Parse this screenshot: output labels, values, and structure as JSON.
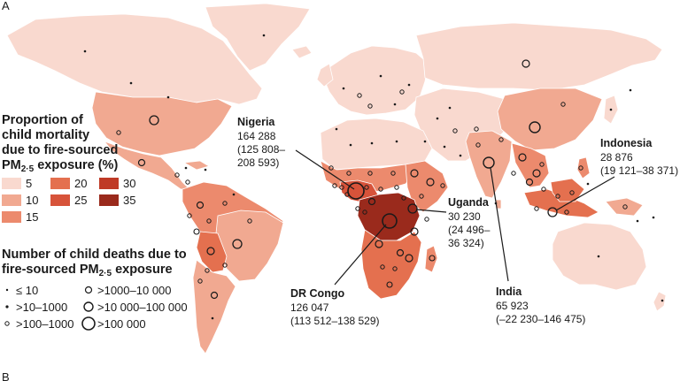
{
  "panel_label": "A",
  "next_panel_label": "B",
  "colors": {
    "5": "#f9d9cf",
    "10": "#f1a991",
    "15": "#ec8a6d",
    "20": "#e4704f",
    "25": "#d7533a",
    "30": "#bf3a27",
    "35": "#9a2a1c"
  },
  "legend_proportion": {
    "title_lines": [
      "Proportion of",
      "child mortality",
      "due to fire-sourced",
      "PM",
      "2·5",
      " exposure (%)"
    ],
    "items": [
      {
        "label": "5",
        "key": "5"
      },
      {
        "label": "20",
        "key": "20"
      },
      {
        "label": "30",
        "key": "30"
      },
      {
        "label": "10",
        "key": "10"
      },
      {
        "label": "25",
        "key": "25"
      },
      {
        "label": "35",
        "key": "35"
      },
      {
        "label": "15",
        "key": "15"
      }
    ]
  },
  "legend_deaths": {
    "title_line1": "Number of child deaths due to",
    "title_line2a": "fire-sourced PM",
    "title_sub": "2·5",
    "title_line2b": " exposure",
    "items": [
      {
        "label": "≤ 10",
        "size": "xs"
      },
      {
        "label": ">1000–10 000",
        "size": "md"
      },
      {
        "label": ">10–1000",
        "size": "sm"
      },
      {
        "label": ">10 000–100 000",
        "size": "lg"
      },
      {
        "label": ">100–1000",
        "size": "s2"
      },
      {
        "label": ">100 000",
        "size": "xl"
      }
    ]
  },
  "callouts": [
    {
      "name": "Nigeria",
      "value": "164 288",
      "ci_line1": "(125 808–",
      "ci_line2": "208 593)"
    },
    {
      "name": "Indonesia",
      "value": "28 876",
      "ci_line1": "(19 121–38 371)",
      "ci_line2": ""
    },
    {
      "name": "Uganda",
      "value": "30 230",
      "ci_line1": "(24 496–",
      "ci_line2": "36 324)"
    },
    {
      "name": "DR Congo",
      "value": "126 047",
      "ci_line1": "(113 512–138 529)",
      "ci_line2": ""
    },
    {
      "name": "India",
      "value": "65 923",
      "ci_line1": "(–22 230–146 475)",
      "ci_line2": ""
    }
  ]
}
